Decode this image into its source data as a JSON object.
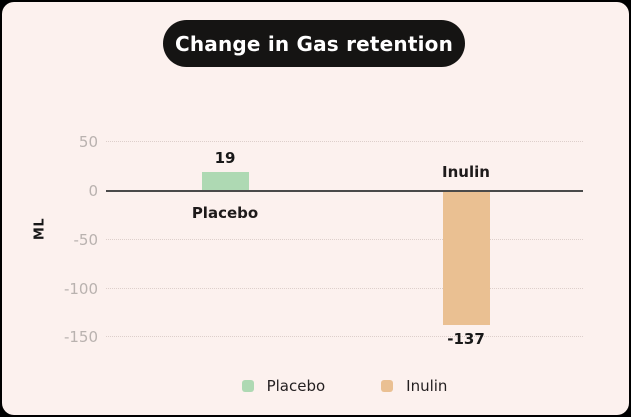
{
  "title": {
    "text": "Change in Gas retention"
  },
  "axis": {
    "y_label": "ML"
  },
  "chart_data": {
    "type": "bar",
    "title": "Change in Gas retention",
    "categories": [
      "Placebo",
      "Inulin"
    ],
    "values": [
      19,
      -137
    ],
    "value_labels": [
      "19",
      "-137"
    ],
    "bar_colors": [
      "#aed9b3",
      "#eac092"
    ],
    "xlabel": "",
    "ylabel": "ML",
    "ylim": [
      -150,
      50
    ],
    "yticks": [
      50,
      0,
      -50,
      -100,
      -150
    ],
    "grid": "horizontal-dotted",
    "legend": {
      "position": "bottom",
      "entries": [
        {
          "label": "Placebo",
          "color": "#aed9b3"
        },
        {
          "label": "Inulin",
          "color": "#eac092"
        }
      ]
    }
  },
  "colors": {
    "background": "#fcf1ee",
    "frame_border": "#000000",
    "title_bg": "#151413",
    "title_text": "#ffffff",
    "gridline": "#ddcfcb",
    "zero_line": "#4a4a4a",
    "tick_text": "#b9b2af",
    "label_text": "#181818"
  }
}
